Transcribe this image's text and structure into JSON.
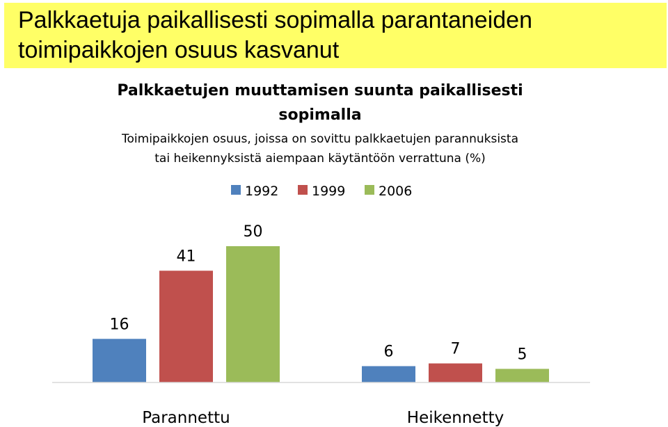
{
  "slide": {
    "title_line1": "Palkkaetuja paikallisesti sopimalla parantaneiden",
    "title_line2": "toimipaikkojen osuus kasvanut"
  },
  "chart_data": {
    "type": "bar",
    "title": "Palkkaetujen  muuttamisen suunta paikallisesti sopimalla",
    "title_line1": "Palkkaetujen  muuttamisen suunta paikallisesti",
    "title_line2": "sopimalla",
    "subtitle_line1": "Toimipaikkojen osuus, joissa on sovittu palkkaetujen parannuksista",
    "subtitle_line2": "tai heikennyksistä aiempaan käytäntöön verrattuna (%)",
    "categories": [
      "Parannettu",
      "Heikennetty"
    ],
    "series": [
      {
        "name": "1992",
        "values": [
          16,
          6
        ],
        "color": "#4f81bd"
      },
      {
        "name": "1999",
        "values": [
          41,
          7
        ],
        "color": "#c0504d"
      },
      {
        "name": "2006",
        "values": [
          50,
          5
        ],
        "color": "#9bbb59"
      }
    ],
    "ylim": [
      0,
      50
    ],
    "grid": false,
    "legend_position": "top-center",
    "data_labels": true
  }
}
